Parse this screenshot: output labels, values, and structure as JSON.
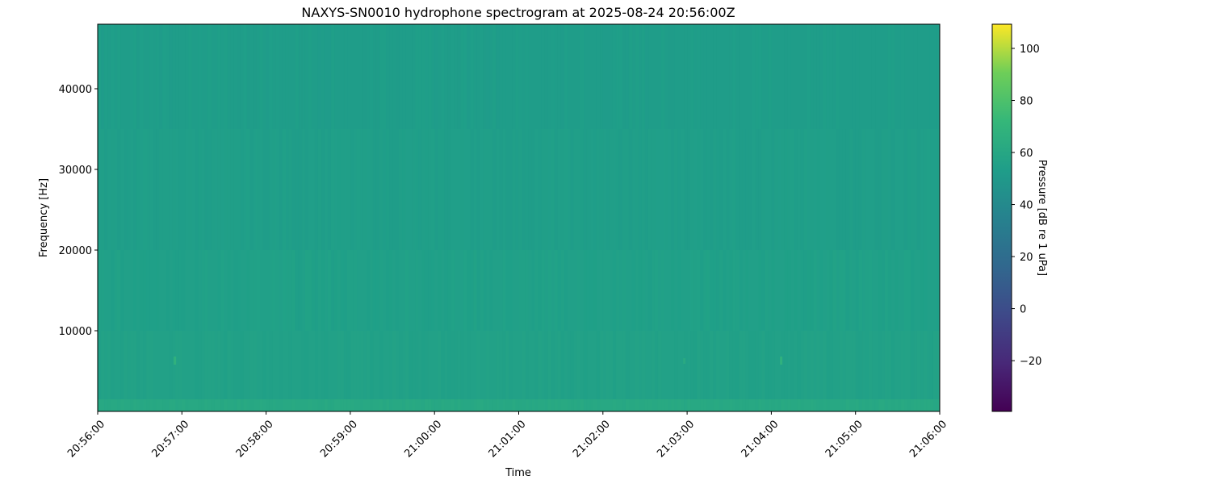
{
  "chart_data": {
    "type": "heatmap",
    "title": "NAXYS-SN0010 hydrophone spectrogram at 2025-08-24 20:56:00Z",
    "xlabel": "Time",
    "ylabel": "Frequency [Hz]",
    "colorbar_label": "Pressure [dB re 1 uPa]",
    "colormap": "viridis",
    "xlim": [
      "20:56:00",
      "21:06:00"
    ],
    "ylim": [
      0,
      48000
    ],
    "clim": [
      -39.5,
      109.3
    ],
    "x_ticks": [
      "20:56:00",
      "20:57:00",
      "20:58:00",
      "20:59:00",
      "21:00:00",
      "21:01:00",
      "21:02:00",
      "21:03:00",
      "21:04:00",
      "21:05:00",
      "21:06:00"
    ],
    "y_ticks": [
      10000,
      20000,
      30000,
      40000
    ],
    "colorbar_ticks": [
      -20,
      0,
      20,
      40,
      60,
      80,
      100
    ],
    "bands": [
      {
        "f_low": 0,
        "f_high": 1500,
        "db": 61
      },
      {
        "f_low": 1500,
        "f_high": 10000,
        "db": 56
      },
      {
        "f_low": 10000,
        "f_high": 20000,
        "db": 55
      },
      {
        "f_low": 20000,
        "f_high": 35000,
        "db": 54
      },
      {
        "f_low": 35000,
        "f_high": 48000,
        "db": 53
      }
    ],
    "hotspots": [
      {
        "time": "20:56:55",
        "f_low": 5800,
        "f_high": 6800,
        "db": 68
      },
      {
        "time": "21:04:07",
        "f_low": 5800,
        "f_high": 6800,
        "db": 68
      },
      {
        "time": "21:02:58",
        "f_low": 5900,
        "f_high": 6600,
        "db": 62
      }
    ]
  }
}
